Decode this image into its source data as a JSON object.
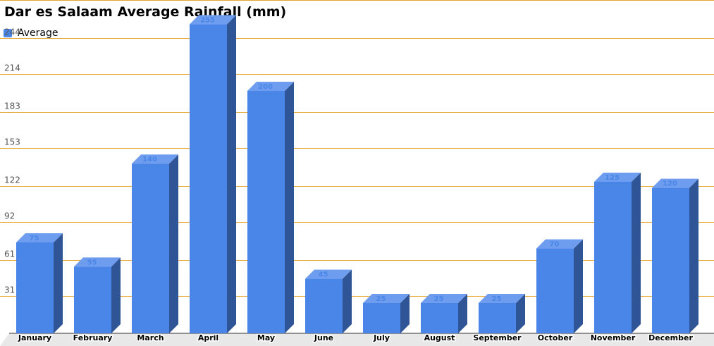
{
  "chart_data": {
    "type": "bar",
    "title": "Dar es Salaam Average Rainfall (mm)",
    "xlabel": "",
    "ylabel": "",
    "categories": [
      "January",
      "February",
      "March",
      "April",
      "May",
      "June",
      "July",
      "August",
      "September",
      "October",
      "November",
      "December"
    ],
    "series": [
      {
        "name": "Average",
        "values": [
          75,
          55,
          140,
          255,
          200,
          45,
          25,
          25,
          25,
          70,
          125,
          120
        ]
      }
    ],
    "y_ticks": [
      "31",
      "61",
      "92",
      "122",
      "153",
      "183",
      "214",
      "244"
    ],
    "ylim": [
      0,
      275
    ],
    "grid": true,
    "legend": "top-left",
    "colors": {
      "bar_front": "#4a86e8",
      "bar_top": "#6e9df0",
      "bar_side": "#2f5597",
      "grid": "#e6a52e",
      "value_label": "#4a86e8",
      "floor": "#e8e8e8"
    }
  }
}
